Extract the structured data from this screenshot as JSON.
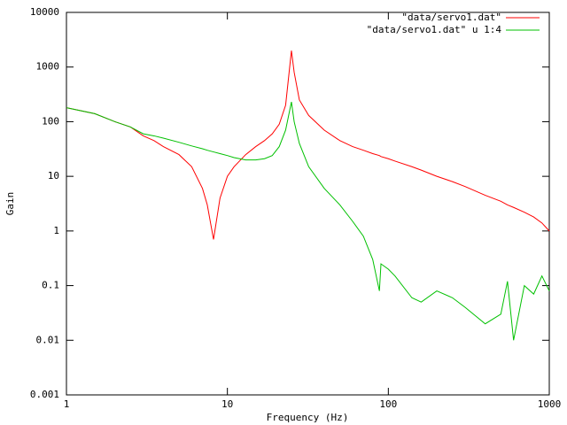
{
  "chart_data": {
    "type": "line",
    "xlabel": "Frequency (Hz)",
    "ylabel": "Gain",
    "xscale": "log",
    "yscale": "log",
    "legend": "top-right",
    "xlim": [
      1,
      1000
    ],
    "ylim": [
      0.001,
      10000
    ],
    "xticks": [
      1,
      10,
      100,
      1000
    ],
    "yticks": [
      0.001,
      0.01,
      0.1,
      1,
      10,
      100,
      1000,
      10000
    ],
    "x": [
      1,
      1.5,
      2,
      2.5,
      3,
      3.5,
      4,
      5,
      6,
      7,
      7.5,
      8.2,
      9,
      10,
      11,
      13,
      15,
      17,
      19,
      21,
      23,
      25,
      26,
      28,
      32,
      40,
      50,
      60,
      70,
      80,
      88,
      90,
      100,
      110,
      140,
      160,
      200,
      250,
      300,
      400,
      500,
      550,
      600,
      700,
      800,
      900,
      1000
    ],
    "series": [
      {
        "name": "\"data/servo1.dat\"",
        "color": "#ff0000",
        "values": [
          180,
          140,
          100,
          80,
          55,
          45,
          35,
          25,
          15,
          6,
          3,
          0.7,
          4,
          10,
          15,
          25,
          35,
          45,
          60,
          90,
          200,
          2000,
          800,
          250,
          130,
          70,
          45,
          35,
          30,
          26,
          24,
          23,
          21,
          19,
          15,
          13,
          10,
          8,
          6.5,
          4.5,
          3.5,
          3,
          2.7,
          2.2,
          1.8,
          1.4,
          1
        ]
      },
      {
        "name": "\"data/servo1.dat\" u 1:4",
        "color": "#00c000",
        "values": [
          180,
          140,
          100,
          80,
          60,
          55,
          50,
          42,
          36,
          32,
          30,
          28,
          26,
          24,
          22,
          20,
          20,
          21,
          24,
          35,
          70,
          230,
          100,
          40,
          15,
          6,
          3,
          1.5,
          0.8,
          0.3,
          0.08,
          0.25,
          0.2,
          0.15,
          0.06,
          0.05,
          0.08,
          0.06,
          0.04,
          0.02,
          0.03,
          0.12,
          0.01,
          0.1,
          0.07,
          0.15,
          0.08
        ]
      }
    ]
  }
}
